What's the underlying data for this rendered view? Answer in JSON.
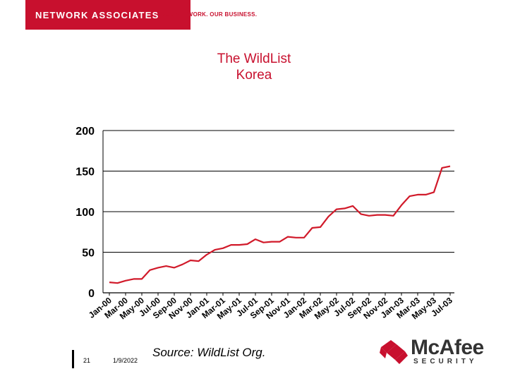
{
  "header": {
    "brand": "NETWORK ASSOCIATES",
    "tagline": "YOUR NETWORK. OUR BUSINESS."
  },
  "footer": {
    "page_number": "21",
    "date": "1/9/2022",
    "source": "Source: WildList Org.",
    "logo_name": "McAfee",
    "logo_sub": "SECURITY"
  },
  "colors": {
    "accent": "#c8102e",
    "line": "#d11a2a"
  },
  "chart_data": {
    "type": "line",
    "title": "The WildList",
    "subtitle": "Korea",
    "xlabel": "",
    "ylabel": "",
    "ylim": [
      0,
      200
    ],
    "yticks": [
      0,
      50,
      100,
      150,
      200
    ],
    "grid": true,
    "x_tick_labels": [
      "Jan-00",
      "Mar-00",
      "May-00",
      "Jul-00",
      "Sep-00",
      "Nov-00",
      "Jan-01",
      "Mar-01",
      "May-01",
      "Jul-01",
      "Sep-01",
      "Nov-01",
      "Jan-02",
      "Mar-02",
      "May-02",
      "Jul-02",
      "Sep-02",
      "Nov-02",
      "Jan-03",
      "Mar-03",
      "May-03",
      "Jul-03"
    ],
    "series": [
      {
        "values": [
          13,
          12,
          15,
          17,
          17,
          28,
          31,
          33,
          31,
          35,
          40,
          39,
          47,
          53,
          55,
          59,
          59,
          60,
          66,
          62,
          63,
          63,
          69,
          68,
          68,
          80,
          81,
          94,
          103,
          104,
          107,
          97,
          95,
          96,
          96,
          95,
          108,
          119,
          121,
          121,
          124,
          154,
          156
        ]
      }
    ]
  }
}
